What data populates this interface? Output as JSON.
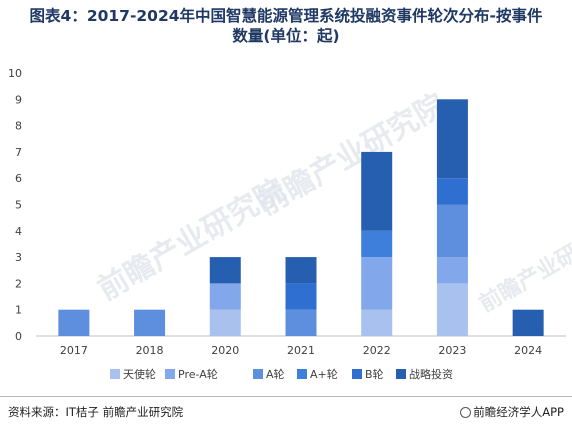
{
  "title": {
    "line1": "图表4：2017-2024年中国智慧能源管理系统投融资事件轮次分布-按事件",
    "line2": "数量(单位：起)"
  },
  "footer": {
    "source": "资料来源：IT桔子 前瞻产业研究院",
    "brand": "前瞻经济学人APP"
  },
  "watermark": "前瞻产业研究院",
  "colors": {
    "天使轮": "#a9c1ef",
    "Pre-A轮": "#82a7ea",
    "A轮": "#5e8fde",
    "A+轮": "#3f7fdc",
    "B轮": "#2f6fcf",
    "战略投资": "#275fb0"
  },
  "chart_data": {
    "type": "bar",
    "stacked": true,
    "categories": [
      "2017",
      "2018",
      "2020",
      "2021",
      "2022",
      "2023",
      "2024"
    ],
    "series": [
      {
        "name": "天使轮",
        "values": [
          0,
          0,
          1,
          0,
          1,
          2,
          0
        ]
      },
      {
        "name": "Pre-A轮",
        "values": [
          0,
          0,
          1,
          0,
          2,
          1,
          0
        ]
      },
      {
        "name": "A轮",
        "values": [
          1,
          1,
          0,
          1,
          0,
          2,
          0
        ]
      },
      {
        "name": "A+轮",
        "values": [
          0,
          0,
          0,
          0,
          1,
          0,
          0
        ]
      },
      {
        "name": "B轮",
        "values": [
          0,
          0,
          0,
          1,
          0,
          1,
          0
        ]
      },
      {
        "name": "战略投资",
        "values": [
          0,
          0,
          1,
          1,
          3,
          3,
          1
        ]
      }
    ],
    "ylim": [
      0,
      10
    ],
    "yticks": [
      0,
      1,
      2,
      3,
      4,
      5,
      6,
      7,
      8,
      9,
      10
    ],
    "legend_position": "bottom",
    "grid": false
  }
}
